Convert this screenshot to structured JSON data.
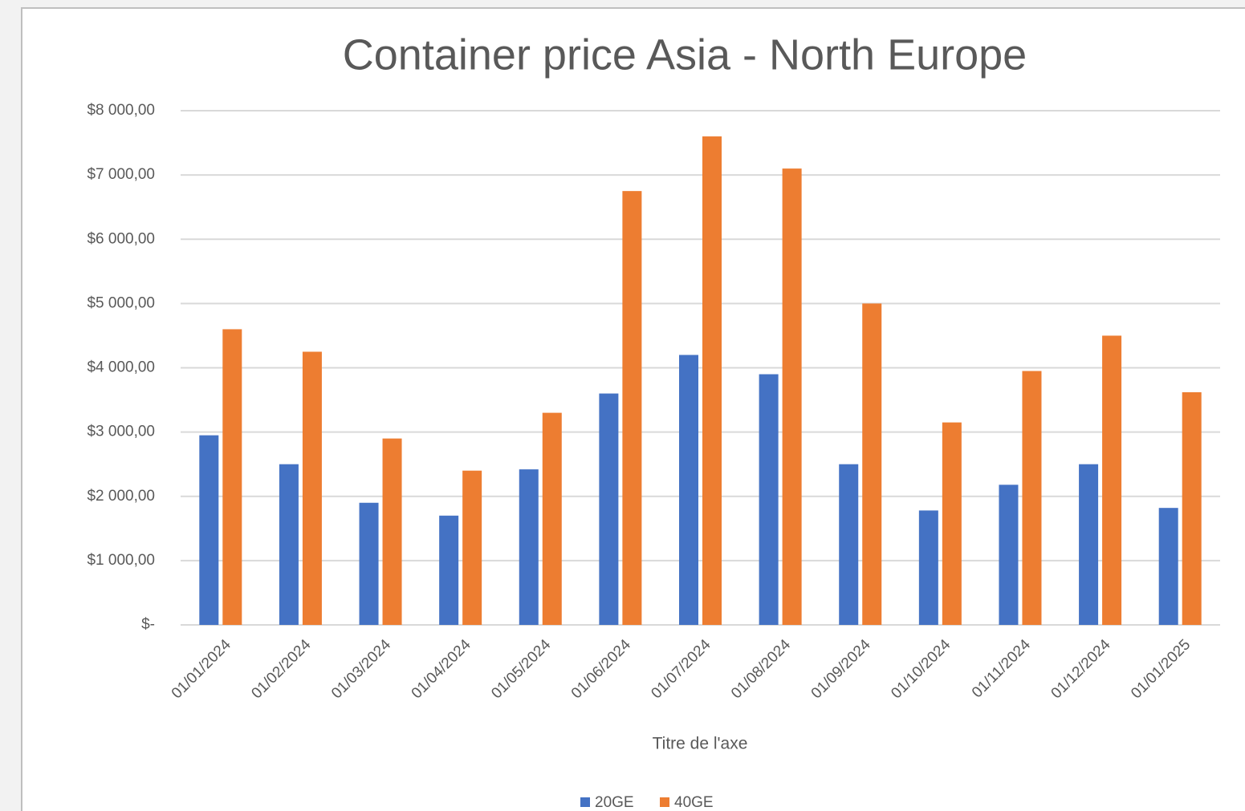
{
  "chart_data": {
    "type": "bar",
    "title": "Container price Asia - North Europe",
    "x_label": "Titre de l'axe",
    "categories": [
      "01/01/2024",
      "01/02/2024",
      "01/03/2024",
      "01/04/2024",
      "01/05/2024",
      "01/06/2024",
      "01/07/2024",
      "01/08/2024",
      "01/09/2024",
      "01/10/2024",
      "01/11/2024",
      "01/12/2024",
      "01/01/2025"
    ],
    "series": [
      {
        "name": "20GE",
        "color": "#4472c4",
        "values": [
          2950,
          2500,
          1900,
          1700,
          2420,
          3600,
          4200,
          3900,
          2500,
          1780,
          2180,
          2500,
          1820
        ]
      },
      {
        "name": "40GE",
        "color": "#ed7d31",
        "values": [
          4600,
          4250,
          2900,
          2400,
          3300,
          6750,
          7600,
          7100,
          5000,
          3150,
          3950,
          4500,
          3620
        ]
      }
    ],
    "ylim": [
      0,
      8000
    ],
    "yticks": [
      {
        "value": 0,
        "label": "$-"
      },
      {
        "value": 1000,
        "label": "$1 000,00"
      },
      {
        "value": 2000,
        "label": "$2 000,00"
      },
      {
        "value": 3000,
        "label": "$3 000,00"
      },
      {
        "value": 4000,
        "label": "$4 000,00"
      },
      {
        "value": 5000,
        "label": "$5 000,00"
      },
      {
        "value": 6000,
        "label": "$6 000,00"
      },
      {
        "value": 7000,
        "label": "$7 000,00"
      },
      {
        "value": 8000,
        "label": "$8 000,00"
      }
    ],
    "grid": true,
    "legend": "bottom"
  }
}
